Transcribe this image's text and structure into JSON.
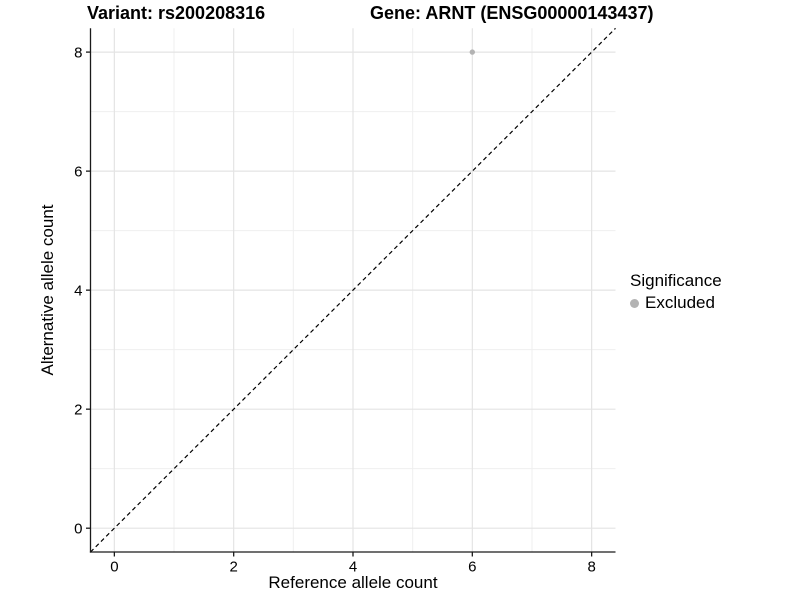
{
  "chart_data": {
    "type": "scatter",
    "title_left": "Variant: rs200208316",
    "title_right": "Gene: ARNT (ENSG00000143437)",
    "xlabel": "Reference allele count",
    "ylabel": "Alternative allele count",
    "xlim": [
      -0.4,
      8.4
    ],
    "ylim": [
      -0.4,
      8.4
    ],
    "x_major_ticks": [
      0,
      2,
      4,
      6,
      8
    ],
    "y_major_ticks": [
      0,
      2,
      4,
      6,
      8
    ],
    "x_minor_gridlines": [
      1,
      3,
      5,
      7
    ],
    "y_minor_gridlines": [
      1,
      3,
      5,
      7
    ],
    "grid": true,
    "points": [
      {
        "x": 6,
        "y": 8,
        "series": "Excluded"
      }
    ],
    "identity_line": {
      "style": "dashed",
      "x1": -0.4,
      "y1": -0.4,
      "x2": 8.4,
      "y2": 8.4
    },
    "legend": {
      "position": "right",
      "title": "Significance",
      "entries": [
        {
          "label": "Excluded",
          "color": "#b3b3b3"
        }
      ]
    },
    "colors": {
      "point": "#b3b3b3",
      "grid_major": "#e4e4e4",
      "grid_minor": "#efefef",
      "axis_line": "#1a1a1a",
      "dashed_line": "#000000",
      "tick_label": "#000000",
      "background": "#ffffff"
    }
  }
}
